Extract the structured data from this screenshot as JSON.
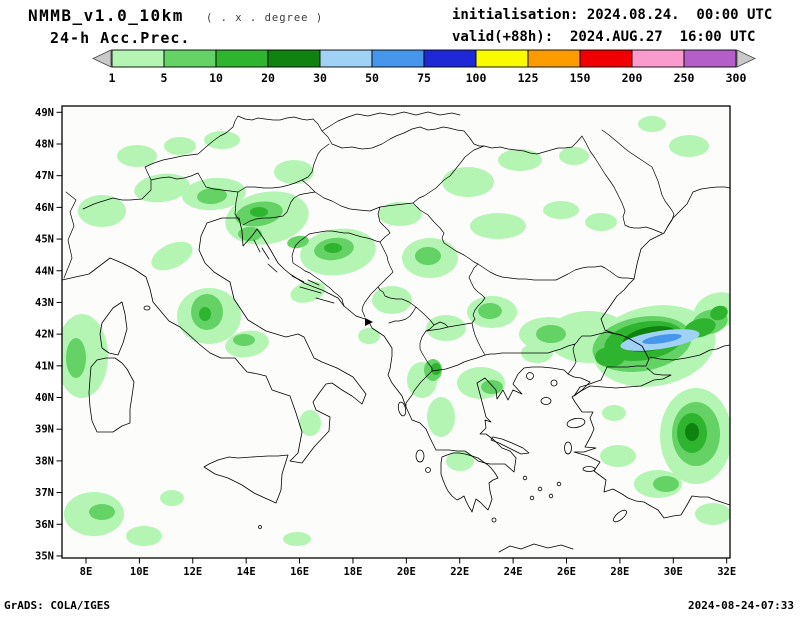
{
  "header": {
    "model_title": "NMMB_v1.0_10km",
    "degree_note": "( . x . degree )",
    "product": "24-h Acc.Prec.",
    "init_line": "initialisation: 2024.08.24.  00:00 UTC",
    "valid_line": "valid(+88h):  2024.AUG.27  16:00 UTC"
  },
  "colorbar": {
    "tick_labels": [
      "1",
      "5",
      "10",
      "20",
      "30",
      "50",
      "75",
      "100",
      "125",
      "150",
      "200",
      "250",
      "300"
    ],
    "cell_colors": [
      "#b4f5b4",
      "#64d264",
      "#2fb42f",
      "#0f820f",
      "#a0d2f5",
      "#4696eb",
      "#1e28d7",
      "#fafa00",
      "#fa9b00",
      "#f00000",
      "#fa9bcd",
      "#b45fc8"
    ],
    "arrow_color": "#c9c9c9",
    "units_mm_levels": [
      1,
      5,
      10,
      20,
      30,
      50,
      75,
      100,
      125,
      150,
      200,
      250,
      300
    ]
  },
  "map": {
    "x_tick_labels": [
      "8E",
      "10E",
      "12E",
      "14E",
      "16E",
      "18E",
      "20E",
      "22E",
      "24E",
      "26E",
      "28E",
      "30E",
      "32E"
    ],
    "y_tick_labels": [
      "49N",
      "48N",
      "47N",
      "46N",
      "45N",
      "44N",
      "43N",
      "42N",
      "41N",
      "40N",
      "39N",
      "38N",
      "37N",
      "36N",
      "35N"
    ]
  },
  "footer": {
    "left": "GrADS: COLA/IGES",
    "right": "2024-08-24-07:33"
  },
  "precip_blobs": [
    [
      0,
      40,
      105,
      24,
      16,
      0
    ],
    [
      0,
      75,
      50,
      20,
      11,
      0
    ],
    [
      0,
      118,
      40,
      16,
      9,
      0
    ],
    [
      0,
      160,
      34,
      18,
      9,
      0
    ],
    [
      0,
      100,
      82,
      28,
      14,
      -8
    ],
    [
      0,
      152,
      88,
      32,
      16,
      -5
    ],
    [
      0,
      232,
      66,
      20,
      12,
      0
    ],
    [
      0,
      205,
      112,
      42,
      26,
      -10
    ],
    [
      0,
      110,
      150,
      22,
      12,
      -25
    ],
    [
      0,
      147,
      210,
      32,
      28,
      0
    ],
    [
      0,
      185,
      238,
      22,
      13,
      -10
    ],
    [
      0,
      20,
      250,
      26,
      42,
      0
    ],
    [
      0,
      32,
      408,
      30,
      22,
      0
    ],
    [
      0,
      82,
      430,
      18,
      10,
      0
    ],
    [
      0,
      276,
      146,
      38,
      23,
      -8
    ],
    [
      0,
      338,
      108,
      22,
      12,
      0
    ],
    [
      0,
      368,
      152,
      28,
      20,
      0
    ],
    [
      0,
      330,
      194,
      20,
      14,
      0
    ],
    [
      0,
      384,
      222,
      20,
      13,
      0
    ],
    [
      0,
      360,
      274,
      15,
      18,
      0
    ],
    [
      0,
      406,
      76,
      26,
      15,
      0
    ],
    [
      0,
      458,
      54,
      22,
      11,
      0
    ],
    [
      0,
      512,
      50,
      15,
      9,
      0
    ],
    [
      0,
      436,
      120,
      28,
      13,
      0
    ],
    [
      0,
      499,
      104,
      18,
      9,
      0
    ],
    [
      0,
      539,
      116,
      16,
      9,
      0
    ],
    [
      0,
      430,
      206,
      25,
      16,
      0
    ],
    [
      0,
      487,
      228,
      30,
      17,
      0
    ],
    [
      0,
      419,
      277,
      24,
      16,
      0
    ],
    [
      0,
      379,
      311,
      14,
      20,
      0
    ],
    [
      0,
      527,
      231,
      42,
      26,
      0
    ],
    [
      0,
      592,
      240,
      62,
      40,
      -10
    ],
    [
      0,
      634,
      330,
      36,
      48,
      0
    ],
    [
      0,
      556,
      350,
      18,
      11,
      0
    ],
    [
      0,
      596,
      378,
      24,
      14,
      0
    ],
    [
      0,
      475,
      247,
      16,
      10,
      0
    ],
    [
      0,
      627,
      40,
      20,
      11,
      0
    ],
    [
      0,
      590,
      18,
      14,
      8,
      0
    ],
    [
      0,
      246,
      186,
      18,
      10,
      -15
    ],
    [
      0,
      307,
      230,
      11,
      8,
      0
    ],
    [
      0,
      248,
      317,
      11,
      13,
      0
    ],
    [
      0,
      651,
      408,
      18,
      11,
      0
    ],
    [
      0,
      110,
      392,
      12,
      8,
      0
    ],
    [
      0,
      655,
      205,
      24,
      18,
      -20
    ],
    [
      0,
      552,
      307,
      12,
      8,
      0
    ],
    [
      0,
      235,
      433,
      14,
      7,
      0
    ],
    [
      0,
      398,
      355,
      14,
      10,
      0
    ],
    [
      1,
      150,
      90,
      15,
      8,
      -5
    ],
    [
      1,
      197,
      108,
      24,
      12,
      -10
    ],
    [
      1,
      188,
      128,
      12,
      7,
      0
    ],
    [
      1,
      145,
      206,
      16,
      18,
      0
    ],
    [
      1,
      182,
      234,
      11,
      6,
      0
    ],
    [
      1,
      272,
      143,
      20,
      11,
      -8
    ],
    [
      1,
      366,
      150,
      13,
      9,
      0
    ],
    [
      1,
      428,
      205,
      12,
      8,
      0
    ],
    [
      1,
      489,
      228,
      15,
      9,
      0
    ],
    [
      1,
      371,
      264,
      9,
      11,
      0
    ],
    [
      1,
      430,
      281,
      11,
      7,
      0
    ],
    [
      1,
      580,
      238,
      50,
      27,
      -10
    ],
    [
      1,
      634,
      328,
      24,
      32,
      0
    ],
    [
      1,
      604,
      378,
      13,
      8,
      0
    ],
    [
      1,
      14,
      252,
      10,
      20,
      0
    ],
    [
      1,
      40,
      406,
      13,
      8,
      0
    ],
    [
      1,
      236,
      136,
      11,
      6,
      -10
    ],
    [
      1,
      648,
      216,
      18,
      12,
      -15
    ],
    [
      2,
      582,
      235,
      40,
      19,
      -10
    ],
    [
      2,
      548,
      251,
      15,
      10,
      0
    ],
    [
      2,
      630,
      327,
      15,
      20,
      0
    ],
    [
      2,
      197,
      106,
      9,
      5,
      0
    ],
    [
      2,
      271,
      142,
      9,
      5,
      0
    ],
    [
      2,
      143,
      208,
      6,
      7,
      0
    ],
    [
      2,
      374,
      263,
      5,
      6,
      0
    ],
    [
      2,
      657,
      207,
      9,
      7,
      -20
    ],
    [
      2,
      638,
      222,
      16,
      9,
      -15
    ],
    [
      3,
      588,
      233,
      28,
      12,
      -11
    ],
    [
      3,
      630,
      326,
      7,
      9,
      0
    ],
    [
      4,
      598,
      234,
      40,
      9,
      -9
    ],
    [
      5,
      600,
      233,
      20,
      4,
      -9
    ]
  ]
}
